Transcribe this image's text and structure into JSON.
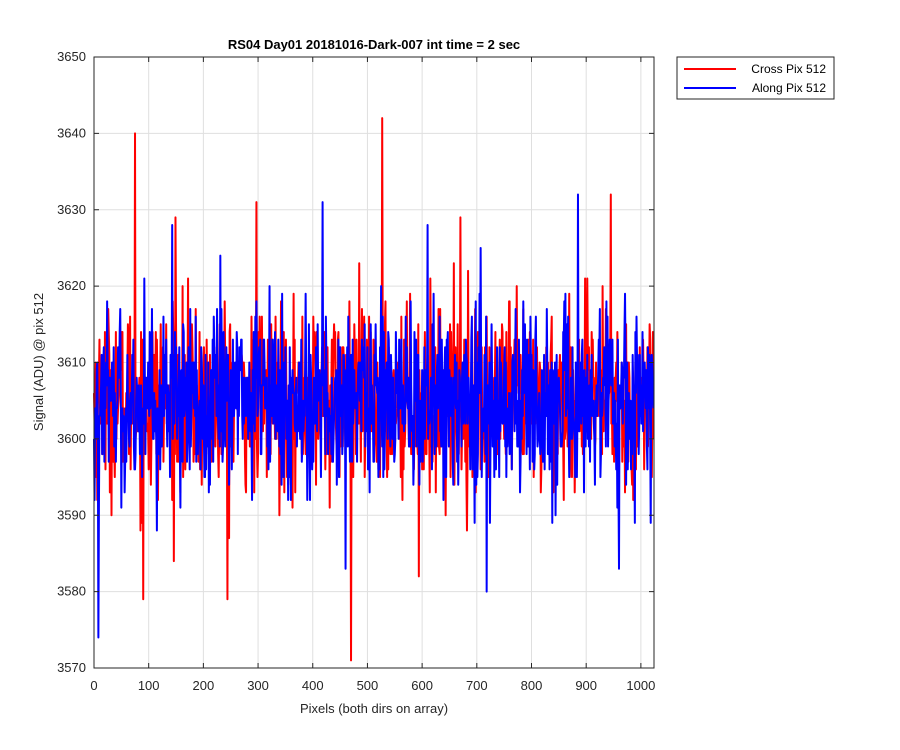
{
  "chart_data": {
    "type": "line",
    "title": "RS04 Day01 20181016-Dark-007 int time = 2 sec",
    "xlabel": "Pixels (both dirs on array)",
    "ylabel": "Signal (ADU) @ pix 512",
    "xlim": [
      0,
      1024
    ],
    "ylim": [
      3570,
      3650
    ],
    "xticks": [
      0,
      100,
      200,
      300,
      400,
      500,
      600,
      700,
      800,
      900,
      1000
    ],
    "yticks": [
      3570,
      3580,
      3590,
      3600,
      3610,
      3620,
      3630,
      3640,
      3650
    ],
    "grid": true,
    "legend_position": "outside-top-right",
    "series": [
      {
        "name": "Cross Pix 512",
        "color": "#ff0000",
        "x_start": 0,
        "x_step": 1,
        "count": 1024,
        "mean": 3605,
        "stdev": 6,
        "seed": 1234,
        "notable_points": [
          {
            "x": 75,
            "y": 3640
          },
          {
            "x": 527,
            "y": 3642
          },
          {
            "x": 470,
            "y": 3571
          },
          {
            "x": 90,
            "y": 3579
          },
          {
            "x": 244,
            "y": 3579
          },
          {
            "x": 297,
            "y": 3631
          },
          {
            "x": 945,
            "y": 3632
          },
          {
            "x": 594,
            "y": 3582
          },
          {
            "x": 149,
            "y": 3629
          },
          {
            "x": 670,
            "y": 3629
          }
        ]
      },
      {
        "name": "Along Pix 512",
        "color": "#0000ff",
        "x_start": 0,
        "x_step": 1,
        "count": 1024,
        "mean": 3605,
        "stdev": 6,
        "seed": 98765,
        "notable_points": [
          {
            "x": 8,
            "y": 3574
          },
          {
            "x": 418,
            "y": 3631
          },
          {
            "x": 885,
            "y": 3632
          },
          {
            "x": 460,
            "y": 3583
          },
          {
            "x": 718,
            "y": 3580
          },
          {
            "x": 960,
            "y": 3583
          },
          {
            "x": 143,
            "y": 3628
          }
        ]
      }
    ]
  }
}
